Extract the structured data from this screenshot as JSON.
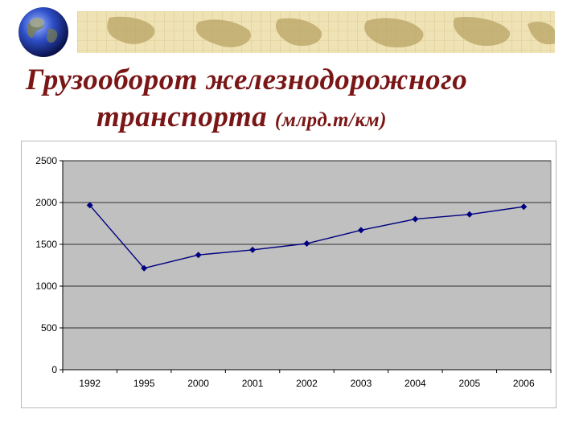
{
  "slide": {
    "title_line1": "Грузооборот железнодорожного",
    "title_line2": "транспорта",
    "title_unit": "(млрд.т/км)"
  },
  "colors": {
    "title": "#7a1616",
    "banner": "#efe2b4",
    "plot_area": "#c0c0c0",
    "series_line": "#000080"
  },
  "chart_data": {
    "type": "line",
    "categories": [
      "1992",
      "1995",
      "2000",
      "2001",
      "2002",
      "2003",
      "2004",
      "2005",
      "2006"
    ],
    "series": [
      {
        "values": [
          1967,
          1214,
          1373,
          1434,
          1510,
          1669,
          1802,
          1858,
          1950
        ]
      }
    ],
    "title": "",
    "xlabel": "",
    "ylabel": "",
    "ylim": [
      0,
      2500
    ],
    "yticks": [
      "0",
      "500",
      "1000",
      "1500",
      "2000",
      "2500"
    ],
    "grid": true,
    "legend": "none",
    "marker": "diamond"
  }
}
